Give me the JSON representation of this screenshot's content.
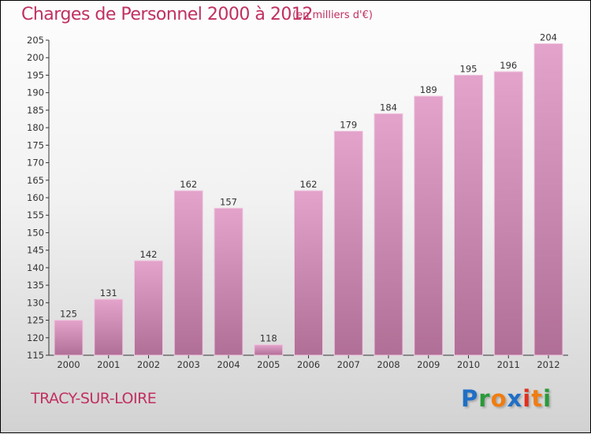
{
  "chart_data": {
    "type": "bar",
    "title": "Charges de Personnel 2000 à 2012",
    "subtitle": "(en milliers d'€)",
    "xlabel": "",
    "ylabel": "",
    "categories": [
      "2000",
      "2001",
      "2002",
      "2003",
      "2004",
      "2005",
      "2006",
      "2007",
      "2008",
      "2009",
      "2010",
      "2011",
      "2012"
    ],
    "values": [
      125,
      131,
      142,
      162,
      157,
      118,
      162,
      179,
      184,
      189,
      195,
      196,
      204
    ],
    "ylim": [
      115,
      205
    ],
    "yticks": [
      115,
      120,
      125,
      130,
      135,
      140,
      145,
      150,
      155,
      160,
      165,
      170,
      175,
      180,
      185,
      190,
      195,
      200,
      205
    ],
    "bar_color": "#d98ab8",
    "grid": false
  },
  "city": "TRACY-SUR-LOIRE",
  "logo": {
    "text": "Proxiti",
    "colors": [
      "#1f6fc6",
      "#2a9a3a",
      "#f07d10",
      "#1f6fc6",
      "#e0301e",
      "#f07d10",
      "#2a9a3a"
    ]
  }
}
